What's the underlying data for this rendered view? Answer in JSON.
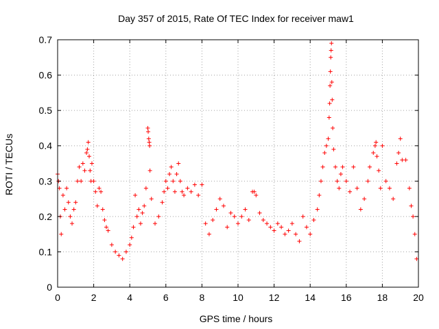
{
  "chart_data": {
    "type": "scatter",
    "title": "Day 357 of 2015, Rate Of TEC Index for receiver maw1",
    "xlabel": "GPS time / hours",
    "ylabel": "ROTI / TECUs",
    "xlim": [
      0,
      20
    ],
    "ylim": [
      0,
      0.7
    ],
    "xticks": [
      0,
      2,
      4,
      6,
      8,
      10,
      12,
      14,
      16,
      18,
      20
    ],
    "yticks": [
      0,
      0.1,
      0.2,
      0.3,
      0.4,
      0.5,
      0.6,
      0.7
    ],
    "grid": true,
    "marker": "+",
    "color": "#ff0000",
    "series": [
      {
        "points": [
          [
            0.0,
            0.32
          ],
          [
            0.05,
            0.3
          ],
          [
            0.1,
            0.28
          ],
          [
            0.15,
            0.2
          ],
          [
            0.2,
            0.15
          ],
          [
            0.3,
            0.26
          ],
          [
            0.4,
            0.22
          ],
          [
            0.5,
            0.28
          ],
          [
            0.6,
            0.24
          ],
          [
            0.7,
            0.2
          ],
          [
            0.8,
            0.18
          ],
          [
            0.9,
            0.22
          ],
          [
            1.0,
            0.24
          ],
          [
            1.1,
            0.3
          ],
          [
            1.2,
            0.34
          ],
          [
            1.3,
            0.3
          ],
          [
            1.4,
            0.35
          ],
          [
            1.5,
            0.33
          ],
          [
            1.6,
            0.38
          ],
          [
            1.65,
            0.39
          ],
          [
            1.7,
            0.41
          ],
          [
            1.75,
            0.37
          ],
          [
            1.8,
            0.33
          ],
          [
            1.85,
            0.3
          ],
          [
            1.9,
            0.35
          ],
          [
            2.0,
            0.3
          ],
          [
            2.1,
            0.27
          ],
          [
            2.2,
            0.23
          ],
          [
            2.3,
            0.28
          ],
          [
            2.4,
            0.27
          ],
          [
            2.5,
            0.22
          ],
          [
            2.6,
            0.19
          ],
          [
            2.7,
            0.17
          ],
          [
            2.8,
            0.16
          ],
          [
            3.0,
            0.12
          ],
          [
            3.2,
            0.1
          ],
          [
            3.4,
            0.09
          ],
          [
            3.6,
            0.08
          ],
          [
            3.8,
            0.1
          ],
          [
            4.0,
            0.12
          ],
          [
            4.1,
            0.14
          ],
          [
            4.2,
            0.17
          ],
          [
            4.3,
            0.26
          ],
          [
            4.4,
            0.2
          ],
          [
            4.5,
            0.22
          ],
          [
            4.6,
            0.18
          ],
          [
            4.7,
            0.21
          ],
          [
            4.8,
            0.23
          ],
          [
            4.9,
            0.28
          ],
          [
            5.0,
            0.45
          ],
          [
            5.02,
            0.44
          ],
          [
            5.05,
            0.42
          ],
          [
            5.08,
            0.41
          ],
          [
            5.1,
            0.4
          ],
          [
            5.12,
            0.33
          ],
          [
            5.2,
            0.25
          ],
          [
            5.4,
            0.18
          ],
          [
            5.6,
            0.2
          ],
          [
            5.8,
            0.24
          ],
          [
            5.9,
            0.27
          ],
          [
            6.0,
            0.3
          ],
          [
            6.1,
            0.28
          ],
          [
            6.2,
            0.32
          ],
          [
            6.3,
            0.34
          ],
          [
            6.4,
            0.3
          ],
          [
            6.5,
            0.27
          ],
          [
            6.6,
            0.32
          ],
          [
            6.7,
            0.35
          ],
          [
            6.8,
            0.3
          ],
          [
            6.9,
            0.27
          ],
          [
            7.0,
            0.26
          ],
          [
            7.2,
            0.28
          ],
          [
            7.4,
            0.27
          ],
          [
            7.6,
            0.29
          ],
          [
            7.8,
            0.26
          ],
          [
            8.0,
            0.29
          ],
          [
            8.2,
            0.18
          ],
          [
            8.4,
            0.15
          ],
          [
            8.6,
            0.19
          ],
          [
            8.8,
            0.22
          ],
          [
            9.0,
            0.25
          ],
          [
            9.2,
            0.23
          ],
          [
            9.4,
            0.17
          ],
          [
            9.6,
            0.21
          ],
          [
            9.8,
            0.2
          ],
          [
            10.0,
            0.18
          ],
          [
            10.2,
            0.2
          ],
          [
            10.4,
            0.22
          ],
          [
            10.6,
            0.19
          ],
          [
            10.8,
            0.27
          ],
          [
            10.9,
            0.27
          ],
          [
            11.0,
            0.26
          ],
          [
            11.2,
            0.21
          ],
          [
            11.4,
            0.19
          ],
          [
            11.6,
            0.18
          ],
          [
            11.8,
            0.17
          ],
          [
            12.0,
            0.16
          ],
          [
            12.2,
            0.18
          ],
          [
            12.4,
            0.17
          ],
          [
            12.6,
            0.15
          ],
          [
            12.8,
            0.16
          ],
          [
            13.0,
            0.18
          ],
          [
            13.2,
            0.15
          ],
          [
            13.4,
            0.13
          ],
          [
            13.6,
            0.2
          ],
          [
            13.8,
            0.17
          ],
          [
            14.0,
            0.15
          ],
          [
            14.2,
            0.19
          ],
          [
            14.4,
            0.22
          ],
          [
            14.5,
            0.26
          ],
          [
            14.6,
            0.3
          ],
          [
            14.7,
            0.34
          ],
          [
            14.8,
            0.38
          ],
          [
            14.9,
            0.4
          ],
          [
            15.0,
            0.42
          ],
          [
            15.05,
            0.48
          ],
          [
            15.08,
            0.52
          ],
          [
            15.1,
            0.57
          ],
          [
            15.12,
            0.61
          ],
          [
            15.14,
            0.65
          ],
          [
            15.16,
            0.67
          ],
          [
            15.18,
            0.69
          ],
          [
            15.2,
            0.58
          ],
          [
            15.22,
            0.53
          ],
          [
            15.25,
            0.45
          ],
          [
            15.3,
            0.39
          ],
          [
            15.4,
            0.34
          ],
          [
            15.5,
            0.3
          ],
          [
            15.6,
            0.28
          ],
          [
            15.7,
            0.32
          ],
          [
            15.8,
            0.34
          ],
          [
            16.0,
            0.3
          ],
          [
            16.2,
            0.27
          ],
          [
            16.4,
            0.34
          ],
          [
            16.6,
            0.28
          ],
          [
            16.8,
            0.22
          ],
          [
            17.0,
            0.25
          ],
          [
            17.2,
            0.3
          ],
          [
            17.3,
            0.34
          ],
          [
            17.5,
            0.38
          ],
          [
            17.6,
            0.4
          ],
          [
            17.65,
            0.41
          ],
          [
            17.7,
            0.37
          ],
          [
            17.8,
            0.33
          ],
          [
            17.9,
            0.28
          ],
          [
            18.0,
            0.4
          ],
          [
            18.2,
            0.3
          ],
          [
            18.4,
            0.28
          ],
          [
            18.6,
            0.25
          ],
          [
            18.8,
            0.35
          ],
          [
            18.9,
            0.38
          ],
          [
            19.0,
            0.42
          ],
          [
            19.1,
            0.36
          ],
          [
            19.3,
            0.36
          ],
          [
            19.5,
            0.28
          ],
          [
            19.6,
            0.23
          ],
          [
            19.7,
            0.2
          ],
          [
            19.8,
            0.15
          ],
          [
            19.9,
            0.08
          ]
        ]
      }
    ]
  }
}
